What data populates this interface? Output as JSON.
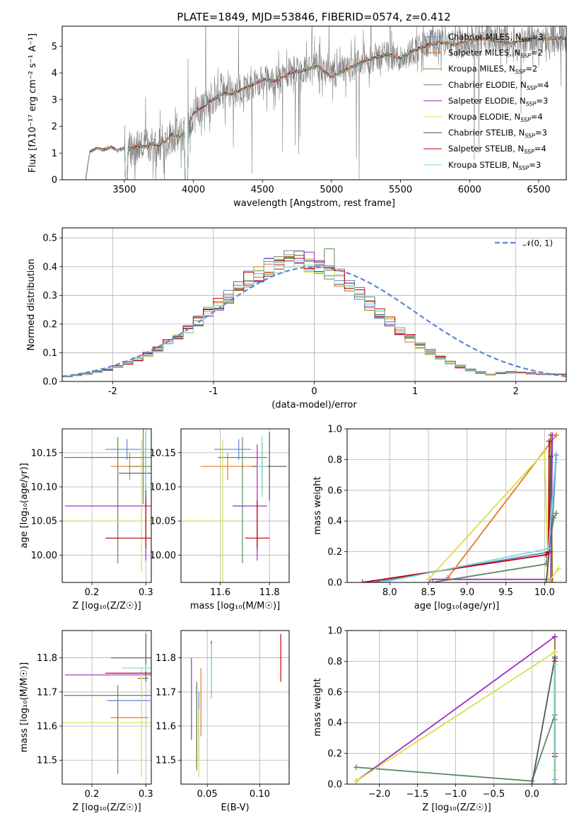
{
  "figure_title": "PLATE=1849, MJD=53846, FIBERID=0574, z=0.412",
  "colors": {
    "chabrier_miles": "#5a86d6",
    "salpeter_miles": "#e87722",
    "kroupa_miles": "#8b7d2a",
    "chabrier_elodie": "#5f8a5f",
    "salpeter_elodie": "#9b30c0",
    "kroupa_elodie": "#d8e04a",
    "chabrier_stelib": "#555555",
    "salpeter_stelib": "#c00000",
    "kroupa_stelib": "#7fd6d6",
    "data": "#808080",
    "normal": "#5a86d6"
  },
  "legend": [
    {
      "model": "Chabrier MILES",
      "nssp": "3",
      "color": "#5a86d6"
    },
    {
      "model": "Salpeter MILES",
      "nssp": "2",
      "color": "#e87722"
    },
    {
      "model": "Kroupa MILES",
      "nssp": "2",
      "color": "#8b7d2a"
    },
    {
      "model": "Chabrier ELODIE",
      "nssp": "4",
      "color": "#5f8a5f"
    },
    {
      "model": "Salpeter ELODIE",
      "nssp": "3",
      "color": "#9b30c0"
    },
    {
      "model": "Kroupa ELODIE",
      "nssp": "4",
      "color": "#d8e04a"
    },
    {
      "model": "Chabrier STELIB",
      "nssp": "3",
      "color": "#555555"
    },
    {
      "model": "Salpeter STELIB",
      "nssp": "4",
      "color": "#c00000"
    },
    {
      "model": "Kroupa STELIB",
      "nssp": "3",
      "color": "#7fd6d6"
    }
  ],
  "nssp_prefix": "N",
  "nssp_sub": "SSP",
  "chart_data": [
    {
      "id": "spectrum",
      "type": "line",
      "xlabel": "wavelength [Angstrom, rest frame]",
      "ylabel": "Flux [fλ10⁻¹⁷ erg cm⁻² s⁻¹ A⁻¹]",
      "xlim": [
        3050,
        6700
      ],
      "ylim": [
        0,
        5.75
      ],
      "xticks": [
        3500,
        4000,
        4500,
        5000,
        5500,
        6000,
        6500
      ],
      "yticks": [
        0,
        1,
        2,
        3,
        4,
        5
      ],
      "model_x": [
        3220,
        3250,
        3300,
        3350,
        3400,
        3450,
        3500,
        3550,
        3600,
        3650,
        3700,
        3750,
        3800,
        3850,
        3900,
        3950,
        4000,
        4100,
        4200,
        4300,
        4400,
        4500,
        4600,
        4700,
        4800,
        4900,
        5000,
        5100,
        5200,
        5300,
        5400,
        5500,
        5600,
        5700,
        5800,
        5900,
        6000,
        6100,
        6200,
        6300,
        6400,
        6500,
        6600,
        6700
      ],
      "model_y": [
        0.0,
        1.05,
        1.18,
        1.12,
        1.22,
        1.1,
        1.2,
        1.15,
        1.28,
        1.22,
        1.35,
        1.3,
        1.45,
        1.7,
        1.55,
        1.9,
        2.5,
        2.85,
        3.2,
        3.25,
        3.5,
        3.75,
        3.7,
        4.0,
        4.1,
        4.25,
        3.85,
        4.1,
        4.35,
        4.55,
        4.7,
        4.55,
        4.85,
        5.05,
        5.15,
        5.05,
        5.2,
        5.3,
        5.2,
        5.1,
        5.25,
        5.25,
        5.3,
        5.3
      ],
      "gap_low": [
        3505,
        3525
      ],
      "gap_mid": [
        3935,
        3960
      ]
    },
    {
      "id": "residuals",
      "type": "bar",
      "xlabel": "(data-model)/error",
      "ylabel": "Normed distribution",
      "xlim": [
        -2.5,
        2.5
      ],
      "ylim": [
        0,
        0.535
      ],
      "xticks": [
        -2,
        -1,
        0,
        1,
        2
      ],
      "yticks": [
        0.0,
        0.1,
        0.2,
        0.3,
        0.4,
        0.5
      ],
      "bin_width": 0.1,
      "hist_mean": [
        0.018,
        0.022,
        0.027,
        0.034,
        0.042,
        0.052,
        0.064,
        0.078,
        0.094,
        0.113,
        0.134,
        0.158,
        0.184,
        0.211,
        0.24,
        0.27,
        0.3,
        0.329,
        0.355,
        0.379,
        0.398,
        0.412,
        0.42,
        0.42,
        0.415,
        0.402,
        0.384,
        0.36,
        0.332,
        0.302,
        0.271,
        0.239,
        0.208,
        0.178,
        0.15,
        0.125,
        0.103,
        0.083,
        0.066,
        0.052,
        0.04,
        0.031,
        0.024,
        0.03,
        0.032,
        0.03,
        0.028,
        0.026,
        0.025,
        0.025
      ],
      "normal_label": "𝒩(0, 1)"
    },
    {
      "id": "age_vs_Z",
      "type": "scatter",
      "xlabel": "Z [log₁₀(Z/Z☉)]",
      "ylabel": "age  [log₁₀(age/yr)]",
      "xlim": [
        0.145,
        0.31
      ],
      "ylim": [
        9.96,
        10.185
      ],
      "xticks": [
        0.2,
        0.3
      ],
      "yticks": [
        10.0,
        10.05,
        10.1,
        10.15
      ],
      "points": [
        {
          "x": 0.265,
          "y": 10.155,
          "xerr": [
            0.04,
            0.04
          ],
          "yerr": [
            0.015,
            0.015
          ]
        },
        {
          "x": 0.27,
          "y": 10.13,
          "xerr": [
            0.035,
            0.035
          ],
          "yerr": [
            0.02,
            0.02
          ]
        },
        {
          "x": 0.295,
          "y": 10.13,
          "xerr": [
            0.03,
            0.03
          ],
          "yerr": [
            0.055,
            0.055
          ]
        },
        {
          "x": 0.248,
          "y": 10.143,
          "xerr": [
            0.1,
            0.1
          ],
          "yerr": [
            0.155,
            0.03
          ]
        },
        {
          "x": 0.3,
          "y": 10.072,
          "xerr": [
            0.15,
            0.15
          ],
          "yerr": [
            0.08,
            0.08
          ]
        },
        {
          "x": 0.292,
          "y": 10.05,
          "xerr": [
            0.15,
            0.15
          ],
          "yerr": [
            0.075,
            0.12
          ]
        },
        {
          "x": 0.3,
          "y": 10.12,
          "xerr": [
            0.05,
            0.05
          ],
          "yerr": [
            0.06,
            0.06
          ]
        },
        {
          "x": 0.3,
          "y": 10.025,
          "xerr": [
            0.075,
            0.075
          ],
          "yerr": [
            0.015,
            0.055
          ]
        },
        {
          "x": 0.3,
          "y": 10.155,
          "xerr": [
            0.01,
            0.01
          ],
          "yerr": [
            0.06,
            0.04
          ]
        }
      ]
    },
    {
      "id": "age_vs_mass",
      "type": "scatter",
      "xlabel": "mass [log₁₀(M/M☉)]",
      "ylabel": "",
      "xlim": [
        11.44,
        11.88
      ],
      "ylim": [
        9.96,
        10.185
      ],
      "xticks": [
        11.6,
        11.8
      ],
      "yticks": [
        10.0,
        10.05,
        10.1,
        10.15
      ],
      "points": [
        {
          "x": 11.675,
          "y": 10.155,
          "xerr": [
            0.1,
            0.05
          ],
          "yerr": [
            0.015,
            0.015
          ]
        },
        {
          "x": 11.63,
          "y": 10.13,
          "xerr": [
            0.11,
            0.11
          ],
          "yerr": [
            0.02,
            0.02
          ]
        },
        {
          "x": 11.77,
          "y": 10.13,
          "xerr": [
            0.01,
            0.01
          ],
          "yerr": [
            0.035,
            0.035
          ]
        },
        {
          "x": 11.69,
          "y": 10.143,
          "xerr": [
            0.1,
            0.1
          ],
          "yerr": [
            0.155,
            0.03
          ]
        },
        {
          "x": 11.75,
          "y": 10.072,
          "xerr": [
            0.1,
            0.04
          ],
          "yerr": [
            0.08,
            0.09
          ]
        },
        {
          "x": 11.61,
          "y": 10.05,
          "xerr": [
            0.15,
            0.06
          ],
          "yerr": [
            0.09,
            0.12
          ]
        },
        {
          "x": 11.8,
          "y": 10.13,
          "xerr": [
            0.07,
            0.07
          ],
          "yerr": [
            0.05,
            0.05
          ]
        },
        {
          "x": 11.75,
          "y": 10.025,
          "xerr": [
            0.05,
            0.05
          ],
          "yerr": [
            0.015,
            0.055
          ]
        },
        {
          "x": 11.77,
          "y": 10.13,
          "xerr": [
            0.02,
            0.02
          ],
          "yerr": [
            0.045,
            0.045
          ]
        }
      ]
    },
    {
      "id": "weight_vs_age",
      "type": "line",
      "xlabel": "age  [log₁₀(age/yr)]",
      "ylabel": "mass weight",
      "xlim": [
        7.45,
        10.28
      ],
      "ylim": [
        0,
        1.0
      ],
      "xticks": [
        8.0,
        8.5,
        9.0,
        9.5,
        10.0
      ],
      "yticks": [
        0.0,
        0.2,
        0.4,
        0.6,
        0.8,
        1.0
      ],
      "series": [
        {
          "x": [
            7.78,
            10.08,
            10.15
          ],
          "y": [
            0.0,
            0.2,
            0.83
          ]
        },
        {
          "x": [
            8.75,
            10.15
          ],
          "y": [
            0.03,
            0.96
          ]
        },
        {
          "x": [
            10.1,
            10.08
          ],
          "y": [
            0.0,
            0.96
          ]
        },
        {
          "x": [
            8.55,
            10.02,
            10.12,
            10.15
          ],
          "y": [
            0.0,
            0.12,
            0.42,
            0.45
          ]
        },
        {
          "x": [
            8.52,
            10.08,
            10.1
          ],
          "y": [
            0.02,
            0.02,
            0.96
          ]
        },
        {
          "x": [
            8.5,
            10.0,
            10.05,
            10.18
          ],
          "y": [
            0.02,
            0.85,
            0.0,
            0.09
          ]
        },
        {
          "x": [
            10.02,
            10.06,
            10.08
          ],
          "y": [
            0.0,
            0.2,
            0.82
          ]
        },
        {
          "x": [
            7.65,
            10.02,
            10.05,
            10.06
          ],
          "y": [
            0.0,
            0.18,
            0.2,
            0.92
          ]
        },
        {
          "x": [
            7.9,
            10.05,
            10.14
          ],
          "y": [
            0.0,
            0.22,
            0.78
          ]
        }
      ]
    },
    {
      "id": "mass_vs_Z",
      "type": "scatter",
      "xlabel": "Z [log₁₀(Z/Z☉)]",
      "ylabel": "mass [log₁₀(M/M☉)]",
      "xlim": [
        0.145,
        0.31
      ],
      "ylim": [
        11.43,
        11.88
      ],
      "xticks": [
        0.2,
        0.3
      ],
      "yticks": [
        11.5,
        11.6,
        11.7,
        11.8
      ],
      "points": [
        {
          "x": 0.268,
          "y": 11.675,
          "xerr": [
            0.04,
            0.04
          ],
          "yerr": [
            0.0,
            0.0
          ]
        },
        {
          "x": 0.27,
          "y": 11.625,
          "xerr": [
            0.035,
            0.035
          ],
          "yerr": [
            0.0,
            0.0
          ]
        },
        {
          "x": 0.295,
          "y": 11.74,
          "xerr": [
            0.01,
            0.01
          ],
          "yerr": [
            0.0,
            0.0
          ]
        },
        {
          "x": 0.248,
          "y": 11.69,
          "xerr": [
            0.1,
            0.1
          ],
          "yerr": [
            0.23,
            0.03
          ]
        },
        {
          "x": 0.3,
          "y": 11.75,
          "xerr": [
            0.15,
            0.15
          ],
          "yerr": [
            0.0,
            0.0
          ]
        },
        {
          "x": 0.292,
          "y": 11.61,
          "xerr": [
            0.15,
            0.15
          ],
          "yerr": [
            0.16,
            0.16
          ]
        },
        {
          "x": 0.3,
          "y": 11.8,
          "xerr": [
            0.065,
            0.065
          ],
          "yerr": [
            0.07,
            0.07
          ]
        },
        {
          "x": 0.3,
          "y": 11.755,
          "xerr": [
            0.075,
            0.075
          ],
          "yerr": [
            0.0,
            0.0
          ]
        },
        {
          "x": 0.3,
          "y": 11.77,
          "xerr": [
            0.045,
            0.045
          ],
          "yerr": [
            0.01,
            0.01
          ]
        }
      ]
    },
    {
      "id": "mass_vs_ebv",
      "type": "scatter",
      "xlabel": "E(B-V)",
      "ylabel": "",
      "xlim": [
        0.025,
        0.128
      ],
      "ylim": [
        11.43,
        11.88
      ],
      "xticks": [
        0.05,
        0.1
      ],
      "yticks": [
        11.5,
        11.6,
        11.7,
        11.8
      ],
      "points": [
        {
          "x": 0.042,
          "y": 11.6,
          "xerr": [
            0.0,
            0.0
          ],
          "yerr": [
            0.1,
            0.1
          ]
        },
        {
          "x": 0.044,
          "y": 11.67,
          "xerr": [
            0.0,
            0.0
          ],
          "yerr": [
            0.1,
            0.1
          ]
        },
        {
          "x": 0.04,
          "y": 11.6,
          "xerr": [
            0.0,
            0.0
          ],
          "yerr": [
            0.12,
            0.12
          ]
        },
        {
          "x": 0.04,
          "y": 11.6,
          "xerr": [
            0.0,
            0.0
          ],
          "yerr": [
            0.13,
            0.13
          ]
        },
        {
          "x": 0.035,
          "y": 11.68,
          "xerr": [
            0.0,
            0.0
          ],
          "yerr": [
            0.12,
            0.12
          ]
        },
        {
          "x": 0.042,
          "y": 11.55,
          "xerr": [
            0.0,
            0.0
          ],
          "yerr": [
            0.1,
            0.1
          ]
        },
        {
          "x": 0.054,
          "y": 11.77,
          "xerr": [
            0.0,
            0.0
          ],
          "yerr": [
            0.08,
            0.08
          ]
        },
        {
          "x": 0.12,
          "y": 11.8,
          "xerr": [
            0.0,
            0.0
          ],
          "yerr": [
            0.07,
            0.07
          ]
        },
        {
          "x": 0.054,
          "y": 11.76,
          "xerr": [
            0.0,
            0.0
          ],
          "yerr": [
            0.08,
            0.08
          ]
        }
      ]
    },
    {
      "id": "weight_vs_Z",
      "type": "line",
      "xlabel": "Z [log₁₀(Z/Z☉)]",
      "ylabel": "mass weight",
      "xlim": [
        -2.42,
        0.45
      ],
      "ylim": [
        0,
        1.0
      ],
      "xticks": [
        -2.0,
        -1.5,
        -1.0,
        -0.5,
        0.0
      ],
      "yticks": [
        0.0,
        0.2,
        0.4,
        0.6,
        0.8,
        1.0
      ],
      "series": [
        {
          "x": [
            0.3,
            0.3
          ],
          "y": [
            0.0,
            0.83
          ]
        },
        {
          "x": [
            0.3,
            0.3
          ],
          "y": [
            0.03,
            0.96
          ]
        },
        {
          "x": [
            0.3,
            0.3
          ],
          "y": [
            0.0,
            0.96
          ]
        },
        {
          "x": [
            -2.3,
            0.0,
            0.3,
            0.3
          ],
          "y": [
            0.11,
            0.02,
            0.45,
            0.42
          ]
        },
        {
          "x": [
            -2.3,
            0.3
          ],
          "y": [
            0.02,
            0.96
          ]
        },
        {
          "x": [
            -2.3,
            0.3,
            0.3
          ],
          "y": [
            0.02,
            0.86,
            0.09
          ]
        },
        {
          "x": [
            0.0,
            0.3,
            0.3
          ],
          "y": [
            0.0,
            0.82,
            0.2
          ]
        },
        {
          "x": [
            0.3,
            0.3,
            0.3
          ],
          "y": [
            0.0,
            0.18,
            0.8
          ]
        },
        {
          "x": [
            0.3,
            0.3
          ],
          "y": [
            0.0,
            0.78
          ]
        }
      ]
    }
  ]
}
